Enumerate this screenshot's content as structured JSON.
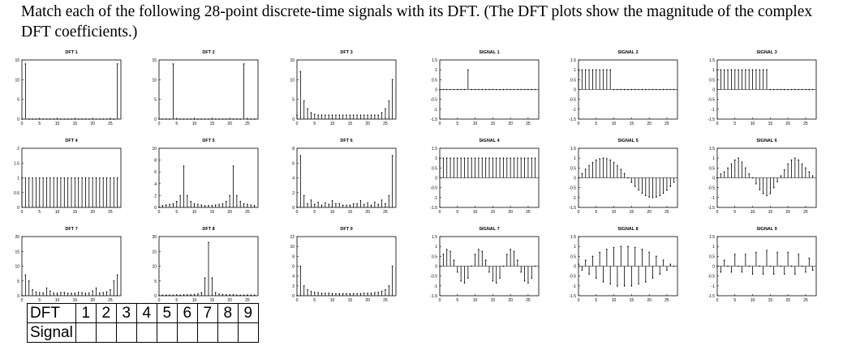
{
  "question": "Match each of the following 28-point discrete-time signals with its DFT. (The DFT plots show the magnitude of the complex DFT coefficients.)",
  "table": {
    "row1_header": "DFT",
    "row2_header": "Signal",
    "numbers": [
      "1",
      "2",
      "3",
      "4",
      "5",
      "6",
      "7",
      "8",
      "9"
    ]
  },
  "chart_data": [
    {
      "type": "stem",
      "title": "DFT 1",
      "x": [
        0,
        1,
        2,
        3,
        4,
        5,
        6,
        7,
        8,
        9,
        10,
        11,
        12,
        13,
        14,
        15,
        16,
        17,
        18,
        19,
        20,
        21,
        22,
        23,
        24,
        25,
        26,
        27
      ],
      "values": [
        0,
        14,
        0,
        0,
        0,
        0,
        0,
        0,
        0,
        0,
        0,
        0,
        0,
        0,
        0,
        0,
        0,
        0,
        0,
        0,
        0,
        0,
        0,
        0,
        0,
        0,
        0,
        14
      ],
      "xticks": [
        0,
        5,
        10,
        15,
        20,
        25
      ],
      "yticks": [
        0,
        5,
        10,
        15
      ],
      "ylim": [
        0,
        15
      ],
      "xlim": [
        0,
        28
      ]
    },
    {
      "type": "stem",
      "title": "DFT 2",
      "x": [
        0,
        1,
        2,
        3,
        4,
        5,
        6,
        7,
        8,
        9,
        10,
        11,
        12,
        13,
        14,
        15,
        16,
        17,
        18,
        19,
        20,
        21,
        22,
        23,
        24,
        25,
        26,
        27
      ],
      "values": [
        0,
        0,
        0,
        0,
        14,
        0,
        0,
        0,
        0,
        0,
        0,
        0,
        0,
        0,
        0,
        0,
        0,
        0,
        0,
        0,
        0,
        0,
        0,
        0,
        14,
        0,
        0,
        0
      ],
      "xticks": [
        0,
        5,
        10,
        15,
        20,
        25
      ],
      "yticks": [
        0,
        5,
        10,
        15
      ],
      "ylim": [
        0,
        15
      ],
      "xlim": [
        0,
        28
      ]
    },
    {
      "type": "stem",
      "title": "DFT 3",
      "x": [
        0,
        1,
        2,
        3,
        4,
        5,
        6,
        7,
        8,
        9,
        10,
        11,
        12,
        13,
        14,
        15,
        16,
        17,
        18,
        19,
        20,
        21,
        22,
        23,
        24,
        25,
        26,
        27
      ],
      "values": [
        1,
        12,
        4.6,
        2.6,
        1.6,
        1.2,
        1,
        1,
        1,
        1,
        1,
        1,
        1,
        1,
        1,
        1,
        1,
        1,
        1,
        1,
        1,
        1,
        1,
        1,
        1.6,
        2.6,
        4.6,
        10
      ],
      "xticks": [
        0,
        5,
        10,
        15,
        20,
        25
      ],
      "yticks": [
        0,
        5,
        10,
        15
      ],
      "ylim": [
        0,
        15
      ],
      "xlim": [
        0,
        28
      ]
    },
    {
      "type": "stem",
      "title": "SIGNAL 1",
      "x": [
        0,
        1,
        2,
        3,
        4,
        5,
        6,
        7,
        8,
        9,
        10,
        11,
        12,
        13,
        14,
        15,
        16,
        17,
        18,
        19,
        20,
        21,
        22,
        23,
        24,
        25,
        26,
        27
      ],
      "values": [
        0,
        0,
        0,
        0,
        0,
        0,
        0,
        0,
        1,
        0,
        0,
        0,
        0,
        0,
        0,
        0,
        0,
        0,
        0,
        0,
        0,
        0,
        0,
        0,
        0,
        0,
        0,
        0
      ],
      "xticks": [
        0,
        5,
        10,
        15,
        20,
        25
      ],
      "yticks": [
        -1.5,
        -1,
        -0.5,
        0,
        0.5,
        1,
        1.5
      ],
      "ylim": [
        -1.5,
        1.5
      ],
      "xlim": [
        0,
        28
      ]
    },
    {
      "type": "stem",
      "title": "SIGNAL 2",
      "x": [
        0,
        1,
        2,
        3,
        4,
        5,
        6,
        7,
        8,
        9,
        10,
        11,
        12,
        13,
        14,
        15,
        16,
        17,
        18,
        19,
        20,
        21,
        22,
        23,
        24,
        25,
        26,
        27
      ],
      "values": [
        1,
        1,
        1,
        1,
        1,
        1,
        1,
        1,
        1,
        1,
        0,
        0,
        0,
        0,
        0,
        0,
        0,
        0,
        0,
        0,
        0,
        0,
        0,
        0,
        0,
        0,
        0,
        0
      ],
      "xticks": [
        0,
        5,
        10,
        15,
        20,
        25
      ],
      "yticks": [
        -1.5,
        -1,
        -0.5,
        0,
        0.5,
        1,
        1.5
      ],
      "ylim": [
        -1.5,
        1.5
      ],
      "xlim": [
        0,
        28
      ]
    },
    {
      "type": "stem",
      "title": "SIGNAL 3",
      "x": [
        0,
        1,
        2,
        3,
        4,
        5,
        6,
        7,
        8,
        9,
        10,
        11,
        12,
        13,
        14,
        15,
        16,
        17,
        18,
        19,
        20,
        21,
        22,
        23,
        24,
        25,
        26,
        27
      ],
      "values": [
        1,
        1,
        1,
        1,
        1,
        1,
        1,
        1,
        1,
        1,
        1,
        1,
        1,
        1,
        1,
        0,
        0,
        0,
        0,
        0,
        0,
        0,
        0,
        0,
        0,
        0,
        0,
        0
      ],
      "xticks": [
        0,
        5,
        10,
        15,
        20,
        25
      ],
      "yticks": [
        -1.5,
        -1,
        -0.5,
        0,
        0.5,
        1,
        1.5
      ],
      "ylim": [
        -1.5,
        1.5
      ],
      "xlim": [
        0,
        28
      ]
    },
    {
      "type": "stem",
      "title": "DFT 4",
      "x": [
        0,
        1,
        2,
        3,
        4,
        5,
        6,
        7,
        8,
        9,
        10,
        11,
        12,
        13,
        14,
        15,
        16,
        17,
        18,
        19,
        20,
        21,
        22,
        23,
        24,
        25,
        26,
        27
      ],
      "values": [
        1,
        1,
        1,
        1,
        1,
        1,
        1,
        1,
        1,
        1,
        1,
        1,
        1,
        1,
        1,
        1,
        1,
        1,
        1,
        1,
        1,
        1,
        1,
        1,
        1,
        1,
        1,
        1
      ],
      "xticks": [
        0,
        5,
        10,
        15,
        20,
        25
      ],
      "yticks": [
        0,
        0.5,
        1,
        1.5,
        2
      ],
      "ylim": [
        0,
        2
      ],
      "xlim": [
        0,
        28
      ]
    },
    {
      "type": "stem",
      "title": "DFT 5",
      "x": [
        0,
        1,
        2,
        3,
        4,
        5,
        6,
        7,
        8,
        9,
        10,
        11,
        12,
        13,
        14,
        15,
        16,
        17,
        18,
        19,
        20,
        21,
        22,
        23,
        24,
        25,
        26,
        27
      ],
      "values": [
        0,
        0.3,
        0.4,
        0.5,
        0.6,
        1,
        2,
        7,
        2,
        1,
        0.6,
        0.5,
        0.4,
        0.3,
        0.3,
        0.3,
        0.4,
        0.5,
        0.6,
        1,
        2,
        7,
        2,
        1,
        0.6,
        0.5,
        0.4,
        0.3
      ],
      "xticks": [
        0,
        5,
        10,
        15,
        20,
        25
      ],
      "yticks": [
        0,
        2,
        4,
        6,
        8,
        10
      ],
      "ylim": [
        0,
        10
      ],
      "xlim": [
        0,
        28
      ]
    },
    {
      "type": "stem",
      "title": "DFT 6",
      "x": [
        0,
        1,
        2,
        3,
        4,
        5,
        6,
        7,
        8,
        9,
        10,
        11,
        12,
        13,
        14,
        15,
        16,
        17,
        18,
        19,
        20,
        21,
        22,
        23,
        24,
        25,
        26,
        27
      ],
      "values": [
        0,
        7,
        1.6,
        0.5,
        1,
        0.4,
        0.7,
        0.3,
        0.6,
        0.4,
        0.9,
        0.5,
        0.5,
        0.3,
        0.3,
        0.3,
        0.5,
        0.5,
        0.9,
        0.4,
        0.6,
        0.3,
        0.7,
        0.4,
        1,
        0.5,
        1.6,
        7
      ],
      "xticks": [
        0,
        5,
        10,
        15,
        20,
        25
      ],
      "yticks": [
        0,
        2,
        4,
        6,
        8
      ],
      "ylim": [
        0,
        8
      ],
      "xlim": [
        0,
        28
      ]
    },
    {
      "type": "stem",
      "title": "SIGNAL 4",
      "x": [
        0,
        1,
        2,
        3,
        4,
        5,
        6,
        7,
        8,
        9,
        10,
        11,
        12,
        13,
        14,
        15,
        16,
        17,
        18,
        19,
        20,
        21,
        22,
        23,
        24,
        25,
        26,
        27
      ],
      "values": [
        1,
        1,
        1,
        1,
        1,
        1,
        1,
        1,
        1,
        1,
        1,
        1,
        1,
        1,
        1,
        1,
        1,
        1,
        1,
        1,
        1,
        1,
        1,
        1,
        1,
        1,
        1,
        1
      ],
      "xticks": [
        0,
        5,
        10,
        15,
        20,
        25
      ],
      "yticks": [
        -1.5,
        -1,
        -0.5,
        0,
        0.5,
        1,
        1.5
      ],
      "ylim": [
        -1.5,
        1.5
      ],
      "xlim": [
        0,
        28
      ]
    },
    {
      "type": "stem",
      "title": "SIGNAL 5",
      "x": [
        0,
        1,
        2,
        3,
        4,
        5,
        6,
        7,
        8,
        9,
        10,
        11,
        12,
        13,
        14,
        15,
        16,
        17,
        18,
        19,
        20,
        21,
        22,
        23,
        24,
        25,
        26,
        27
      ],
      "values": [
        0,
        0.22,
        0.43,
        0.62,
        0.78,
        0.9,
        0.97,
        1,
        0.97,
        0.9,
        0.78,
        0.62,
        0.43,
        0.22,
        0,
        -0.22,
        -0.43,
        -0.62,
        -0.78,
        -0.9,
        -0.97,
        -1,
        -0.97,
        -0.9,
        -0.78,
        -0.62,
        -0.43,
        -0.22
      ],
      "xticks": [
        0,
        5,
        10,
        15,
        20,
        25
      ],
      "yticks": [
        -1.5,
        -1,
        -0.5,
        0,
        0.5,
        1,
        1.5
      ],
      "ylim": [
        -1.5,
        1.5
      ],
      "xlim": [
        0,
        28
      ]
    },
    {
      "type": "stem",
      "title": "SIGNAL 6",
      "x": [
        0,
        1,
        2,
        3,
        4,
        5,
        6,
        7,
        8,
        9,
        10,
        11,
        12,
        13,
        14,
        15,
        16,
        17,
        18,
        19,
        20,
        21,
        22,
        23,
        24,
        25,
        26,
        27
      ],
      "values": [
        0,
        0.2,
        0.3,
        0.5,
        0.7,
        0.9,
        1,
        0.8,
        0.5,
        0.2,
        0,
        -0.3,
        -0.6,
        -0.8,
        -0.9,
        -0.8,
        -0.5,
        -0.2,
        0.1,
        0.4,
        0.7,
        0.9,
        1,
        0.9,
        0.7,
        0.5,
        0.3,
        0.1
      ],
      "xticks": [
        0,
        5,
        10,
        15,
        20,
        25
      ],
      "yticks": [
        -1.5,
        -1,
        -0.5,
        0,
        0.5,
        1,
        1.5
      ],
      "ylim": [
        -1.5,
        1.5
      ],
      "xlim": [
        0,
        28
      ]
    },
    {
      "type": "stem",
      "title": "DFT 7",
      "x": [
        0,
        1,
        2,
        3,
        4,
        5,
        6,
        7,
        8,
        9,
        10,
        11,
        12,
        13,
        14,
        15,
        16,
        17,
        18,
        19,
        20,
        21,
        22,
        23,
        24,
        25,
        26,
        27
      ],
      "values": [
        0,
        7,
        5,
        2,
        1.3,
        1,
        0.9,
        2.6,
        1.6,
        0.9,
        0.8,
        1,
        1.1,
        0.8,
        0.8,
        0.8,
        1.1,
        1,
        0.8,
        0.9,
        1.6,
        2.6,
        0.9,
        1,
        1.3,
        2,
        5,
        7
      ],
      "xticks": [
        0,
        5,
        10,
        15,
        20,
        25
      ],
      "yticks": [
        0,
        5,
        10,
        15,
        20
      ],
      "ylim": [
        0,
        20
      ],
      "xlim": [
        0,
        28
      ]
    },
    {
      "type": "stem",
      "title": "DFT 8",
      "x": [
        0,
        1,
        2,
        3,
        4,
        5,
        6,
        7,
        8,
        9,
        10,
        11,
        12,
        13,
        14,
        15,
        16,
        17,
        18,
        19,
        20,
        21,
        22,
        23,
        24,
        25,
        26,
        27
      ],
      "values": [
        0,
        0.2,
        0.2,
        0.2,
        0.2,
        0.2,
        0.2,
        0.3,
        0.3,
        0.3,
        0.4,
        0.6,
        1,
        6,
        18,
        6,
        1,
        0.6,
        0.4,
        0.3,
        0.3,
        0.3,
        0.2,
        0.2,
        0.2,
        0.2,
        0.2,
        0.2
      ],
      "xticks": [
        0,
        5,
        10,
        15,
        20,
        25
      ],
      "yticks": [
        0,
        5,
        10,
        15,
        20
      ],
      "ylim": [
        0,
        20
      ],
      "xlim": [
        0,
        28
      ]
    },
    {
      "type": "stem",
      "title": "DFT 9",
      "x": [
        0,
        1,
        2,
        3,
        4,
        5,
        6,
        7,
        8,
        9,
        10,
        11,
        12,
        13,
        14,
        15,
        16,
        17,
        18,
        19,
        20,
        21,
        22,
        23,
        24,
        25,
        26,
        27
      ],
      "values": [
        0,
        6,
        2,
        1.2,
        0.9,
        0.7,
        0.6,
        0.5,
        0.5,
        0.5,
        0.4,
        0.4,
        0.4,
        0.4,
        0.4,
        0.4,
        0.4,
        0.4,
        0.4,
        0.5,
        0.5,
        0.5,
        0.6,
        0.7,
        0.9,
        1.2,
        2,
        6
      ],
      "xticks": [
        0,
        5,
        10,
        15,
        20,
        25
      ],
      "yticks": [
        0,
        2,
        4,
        6,
        8,
        10,
        12
      ],
      "ylim": [
        0,
        12
      ],
      "xlim": [
        0,
        28
      ]
    },
    {
      "type": "stem",
      "title": "SIGNAL 7",
      "x": [
        0,
        1,
        2,
        3,
        4,
        5,
        6,
        7,
        8,
        9,
        10,
        11,
        12,
        13,
        14,
        15,
        16,
        17,
        18,
        19,
        20,
        21,
        22,
        23,
        24,
        25,
        26,
        27
      ],
      "values": [
        0,
        0.6,
        0.85,
        0.75,
        0.3,
        -0.3,
        -0.75,
        -0.85,
        -0.6,
        0,
        0.6,
        0.85,
        0.75,
        0.3,
        -0.3,
        -0.75,
        -0.85,
        -0.6,
        0,
        0.6,
        0.85,
        0.75,
        0.3,
        -0.3,
        -0.75,
        -0.85,
        -0.6,
        0
      ],
      "xticks": [
        0,
        5,
        10,
        15,
        20,
        25
      ],
      "yticks": [
        -1.5,
        -1,
        -0.5,
        0,
        0.5,
        1,
        1.5
      ],
      "ylim": [
        -1.5,
        1.5
      ],
      "xlim": [
        0,
        28
      ]
    },
    {
      "type": "stem",
      "title": "SIGNAL 8",
      "x": [
        0,
        1,
        2,
        3,
        4,
        5,
        6,
        7,
        8,
        9,
        10,
        11,
        12,
        13,
        14,
        15,
        16,
        17,
        18,
        19,
        20,
        21,
        22,
        23,
        24,
        25,
        26,
        27
      ],
      "values": [
        0.1,
        -0.2,
        0.3,
        -0.4,
        0.5,
        -0.6,
        0.7,
        -0.8,
        0.85,
        -0.9,
        0.95,
        -1,
        1,
        -1,
        1,
        -1,
        0.95,
        -0.9,
        0.85,
        -0.8,
        0.7,
        -0.6,
        0.5,
        -0.4,
        0.3,
        -0.2,
        0.1,
        0
      ],
      "xticks": [
        0,
        5,
        10,
        15,
        20,
        25
      ],
      "yticks": [
        -1.5,
        -1,
        -0.5,
        0,
        0.5,
        1,
        1.5
      ],
      "ylim": [
        -1.5,
        1.5
      ],
      "xlim": [
        0,
        28
      ]
    },
    {
      "type": "stem",
      "title": "SIGNAL 9",
      "x": [
        0,
        1,
        2,
        3,
        4,
        5,
        6,
        7,
        8,
        9,
        10,
        11,
        12,
        13,
        14,
        15,
        16,
        17,
        18,
        19,
        20,
        21,
        22,
        23,
        24,
        25,
        26,
        27
      ],
      "values": [
        0,
        -0.3,
        0.3,
        0,
        -0.3,
        0.6,
        0,
        -0.3,
        0.6,
        0,
        -0.4,
        0.7,
        0,
        -0.4,
        0.8,
        0,
        -0.4,
        0.7,
        0,
        -0.4,
        0.7,
        0,
        -0.4,
        0.6,
        0,
        -0.3,
        0.4,
        -0.2
      ],
      "xticks": [
        0,
        5,
        10,
        15,
        20,
        25
      ],
      "yticks": [
        -1.5,
        -1,
        -0.5,
        0,
        0.5,
        1,
        1.5
      ],
      "ylim": [
        -1.5,
        1.5
      ],
      "xlim": [
        0,
        28
      ]
    }
  ]
}
